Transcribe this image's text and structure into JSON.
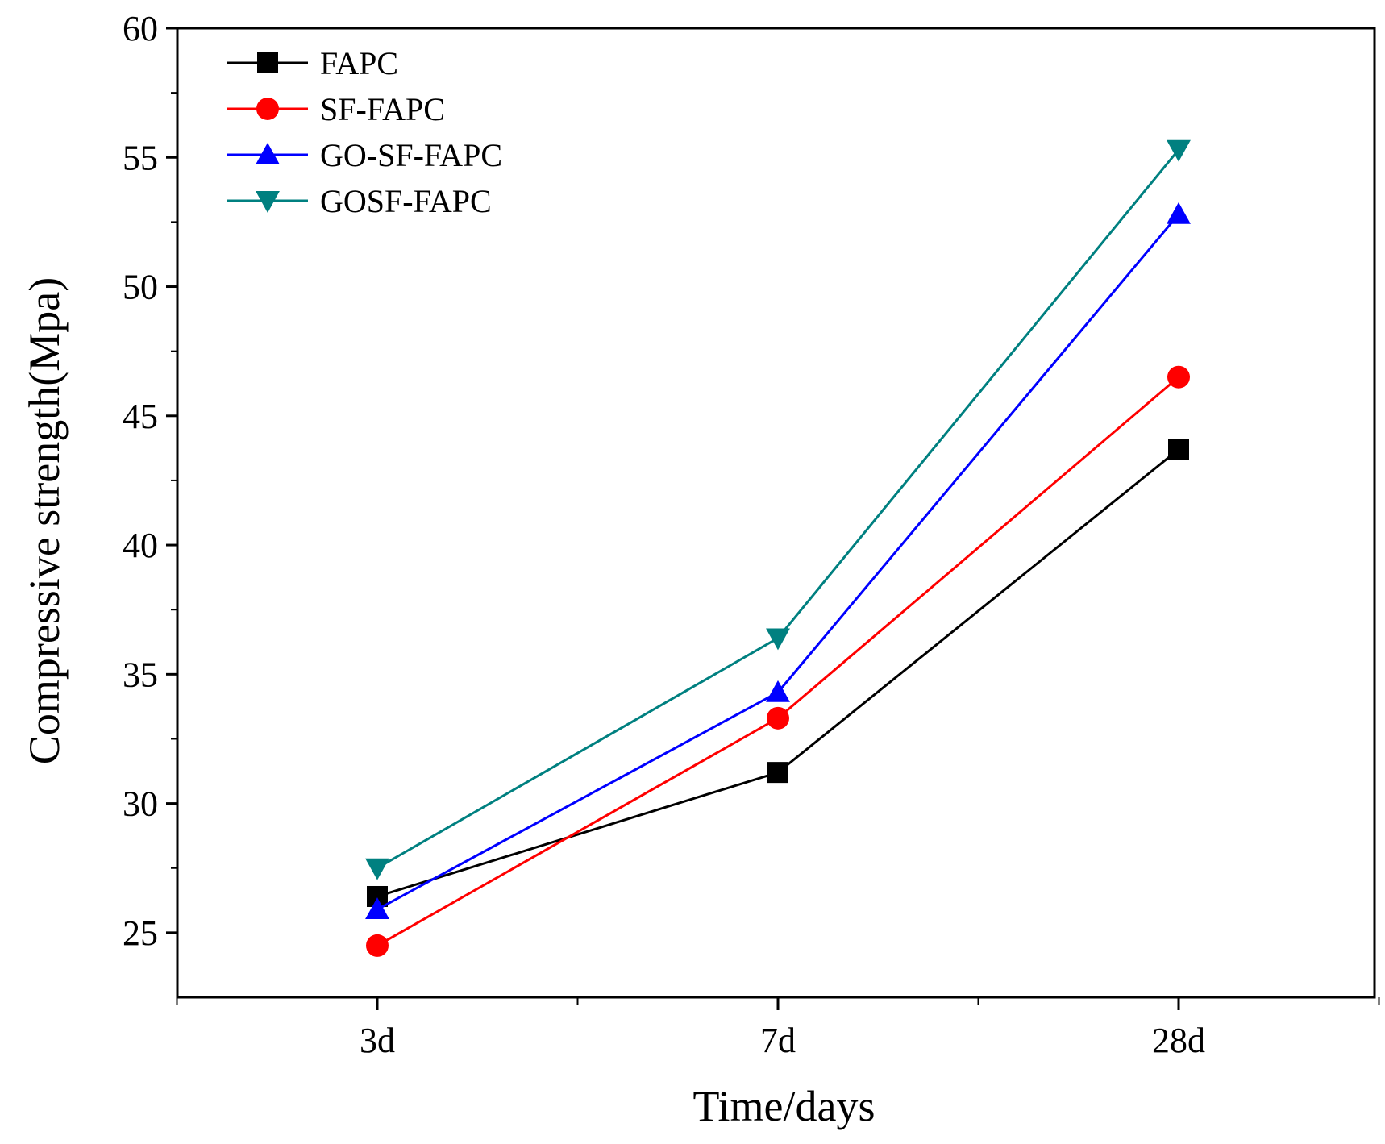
{
  "chart_data": {
    "type": "line",
    "xlabel": "Time/days",
    "ylabel": "Compressive strength(Mpa)",
    "categories": [
      "3d",
      "7d",
      "28d"
    ],
    "ylim": [
      22.5,
      60
    ],
    "yticks": [
      25,
      30,
      35,
      40,
      45,
      50,
      55,
      60
    ],
    "grid": false,
    "legend_position": "top-left",
    "series": [
      {
        "name": "FAPC",
        "values": [
          26.4,
          31.2,
          43.7
        ],
        "color": "#000000",
        "marker": "square"
      },
      {
        "name": "SF-FAPC",
        "values": [
          24.5,
          33.3,
          46.5
        ],
        "color": "#ff0000",
        "marker": "circle"
      },
      {
        "name": "GO-SF-FAPC",
        "values": [
          25.9,
          34.3,
          52.8
        ],
        "color": "#0000ff",
        "marker": "triangle-up"
      },
      {
        "name": "GOSF-FAPC",
        "values": [
          27.5,
          36.4,
          55.3
        ],
        "color": "#008080",
        "marker": "triangle-down"
      }
    ]
  }
}
